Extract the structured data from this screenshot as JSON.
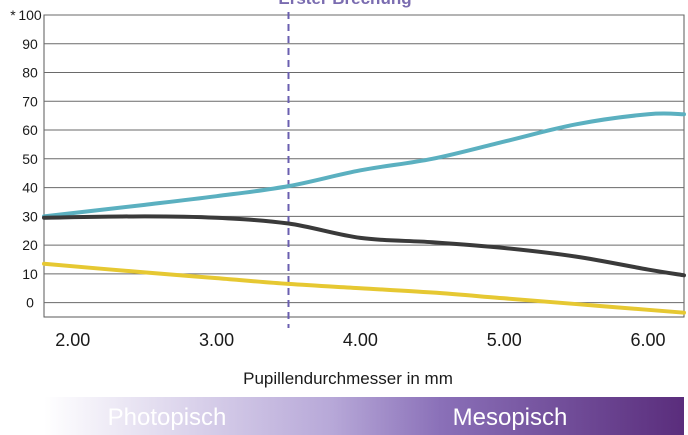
{
  "chart_data": {
    "type": "line",
    "title": "Erster Brechung",
    "xlabel": "Pupillendurchmesser in mm",
    "ylabel": "",
    "asterisk": "*",
    "xlim": [
      1.8,
      6.25
    ],
    "ylim": [
      -5,
      100
    ],
    "x_ticks": [
      2.0,
      3.0,
      4.0,
      5.0,
      6.0
    ],
    "x_tick_labels": [
      "2.00",
      "3.00",
      "4.00",
      "5.00",
      "6.00"
    ],
    "y_ticks": [
      0,
      10,
      20,
      30,
      40,
      50,
      60,
      70,
      80,
      90,
      100
    ],
    "y_tick_labels": [
      "0",
      "10",
      "20",
      "30",
      "40",
      "50",
      "60",
      "70",
      "80",
      "90",
      "100"
    ],
    "grid": true,
    "vertical_marker": {
      "x": 3.5,
      "style": "dashed",
      "color": "#6a5fb0"
    },
    "series": [
      {
        "color": "#5bb0c0",
        "x": [
          1.8,
          2.5,
          3.0,
          3.5,
          4.0,
          4.5,
          5.0,
          5.5,
          6.0,
          6.25
        ],
        "y": [
          30,
          34,
          37,
          40.5,
          46,
          50,
          56,
          62,
          65.5,
          65.5
        ]
      },
      {
        "color": "#3a3a3a",
        "x": [
          1.8,
          2.5,
          3.0,
          3.5,
          4.0,
          4.5,
          5.0,
          5.5,
          6.0,
          6.25
        ],
        "y": [
          29.5,
          30,
          29.5,
          27.5,
          22.5,
          21,
          19,
          16,
          11.5,
          9.5
        ]
      },
      {
        "color": "#e6c832",
        "x": [
          1.8,
          2.5,
          3.0,
          3.5,
          4.0,
          4.5,
          5.0,
          5.5,
          6.0,
          6.25
        ],
        "y": [
          13.5,
          10.5,
          8.5,
          6.5,
          5,
          3.5,
          1.5,
          -0.5,
          -2.5,
          -3.5
        ]
      }
    ],
    "bands": [
      {
        "label": "Photopisch",
        "color_start": "#ffffff",
        "color_end": "#b7a8d8"
      },
      {
        "label": "Mesopisch",
        "color_start": "#8a70b8",
        "color_end": "#5a2d7c"
      }
    ]
  }
}
